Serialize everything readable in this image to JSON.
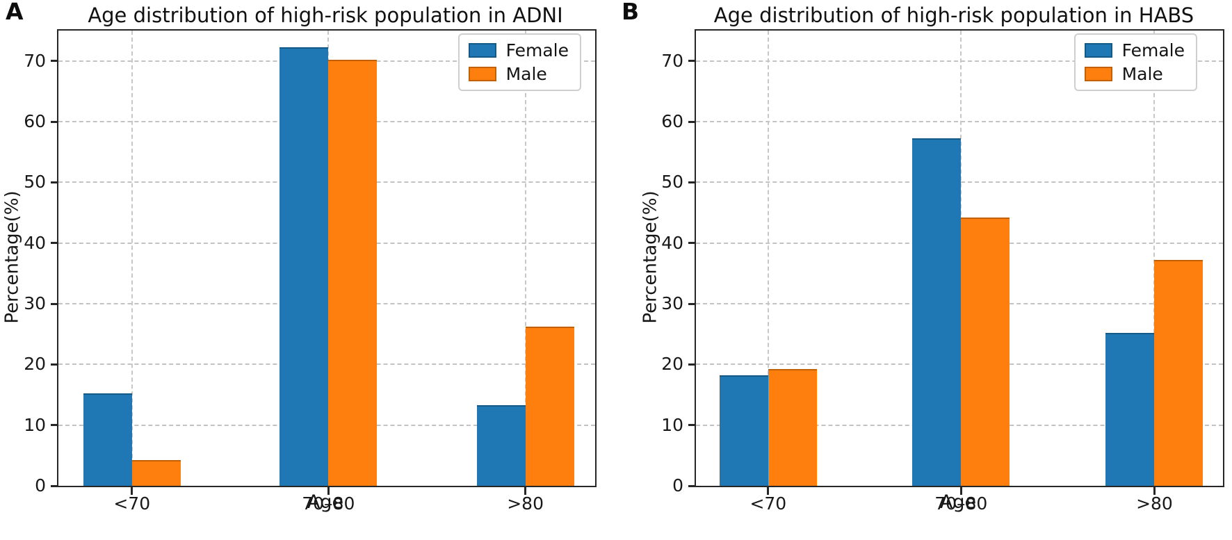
{
  "figure_caption_letters": [
    "A",
    "B"
  ],
  "chart_data": [
    {
      "panel_letter": "A",
      "type": "bar",
      "title": "Age distribution of high-risk population in ADNI",
      "categories": [
        "<70",
        "70–80",
        ">80"
      ],
      "series": [
        {
          "name": "Female",
          "color": "#1f77b4",
          "edge_color": "#155987",
          "values": [
            15,
            72,
            13
          ]
        },
        {
          "name": "Male",
          "color": "#ff7f0e",
          "edge_color": "#c26006",
          "values": [
            4,
            70,
            26
          ]
        }
      ],
      "xlabel": "Age",
      "ylabel": "Percentage(%)",
      "yticks": [
        0,
        10,
        20,
        30,
        40,
        50,
        60,
        70
      ],
      "ylim": [
        0,
        75
      ],
      "grid": {
        "style": "dashed",
        "horizontal": true,
        "vertical": true,
        "color": "#c3c3c3"
      },
      "legend": {
        "position": "top-right",
        "entries": [
          "Female",
          "Male"
        ]
      }
    },
    {
      "panel_letter": "B",
      "type": "bar",
      "title": "Age distribution of high-risk population in HABS",
      "categories": [
        "<70",
        "70–80",
        ">80"
      ],
      "series": [
        {
          "name": "Female",
          "color": "#1f77b4",
          "edge_color": "#155987",
          "values": [
            18,
            57,
            25
          ]
        },
        {
          "name": "Male",
          "color": "#ff7f0e",
          "edge_color": "#c26006",
          "values": [
            19,
            44,
            37
          ]
        }
      ],
      "xlabel": "Age",
      "ylabel": "Percentage(%)",
      "yticks": [
        0,
        10,
        20,
        30,
        40,
        50,
        60,
        70
      ],
      "ylim": [
        0,
        75
      ],
      "grid": {
        "style": "dashed",
        "horizontal": true,
        "vertical": true,
        "color": "#c3c3c3"
      },
      "legend": {
        "position": "top-right",
        "entries": [
          "Female",
          "Male"
        ]
      }
    }
  ]
}
